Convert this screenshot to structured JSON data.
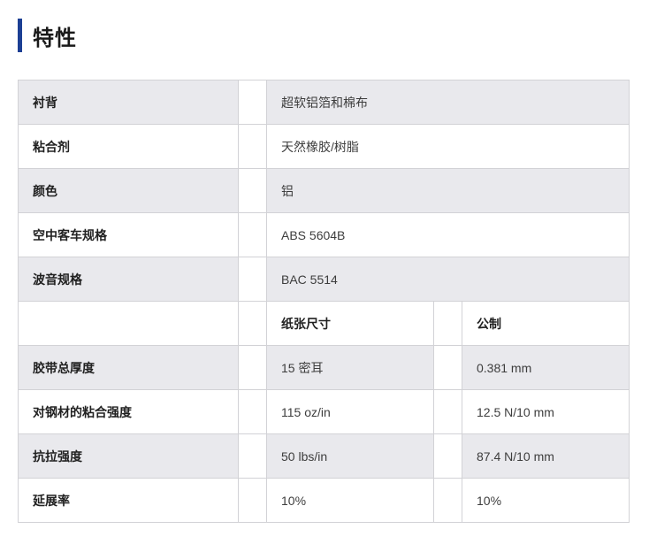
{
  "page": {
    "title": "特性"
  },
  "accent_color": "#1c3f94",
  "row_shade_color": "#e9e9ed",
  "table": {
    "simple_rows": [
      {
        "label": "衬背",
        "value": "超软铝箔和棉布"
      },
      {
        "label": "粘合剂",
        "value": "天然橡胶/树脂"
      },
      {
        "label": "颜色",
        "value": "铝"
      },
      {
        "label": "空中客车规格",
        "value": "ABS 5604B"
      },
      {
        "label": "波音规格",
        "value": "BAC 5514"
      }
    ],
    "column_headers": {
      "imperial": "纸张尺寸",
      "metric": "公制"
    },
    "measure_rows": [
      {
        "label": "胶带总厚度",
        "imperial": "15 密耳",
        "metric": "0.381 mm"
      },
      {
        "label": "对钢材的粘合强度",
        "imperial": "115 oz/in",
        "metric": "12.5 N/10 mm"
      },
      {
        "label": "抗拉强度",
        "imperial": "50 lbs/in",
        "metric": "87.4 N/10 mm"
      },
      {
        "label": "延展率",
        "imperial": "10%",
        "metric": "10%"
      }
    ]
  }
}
